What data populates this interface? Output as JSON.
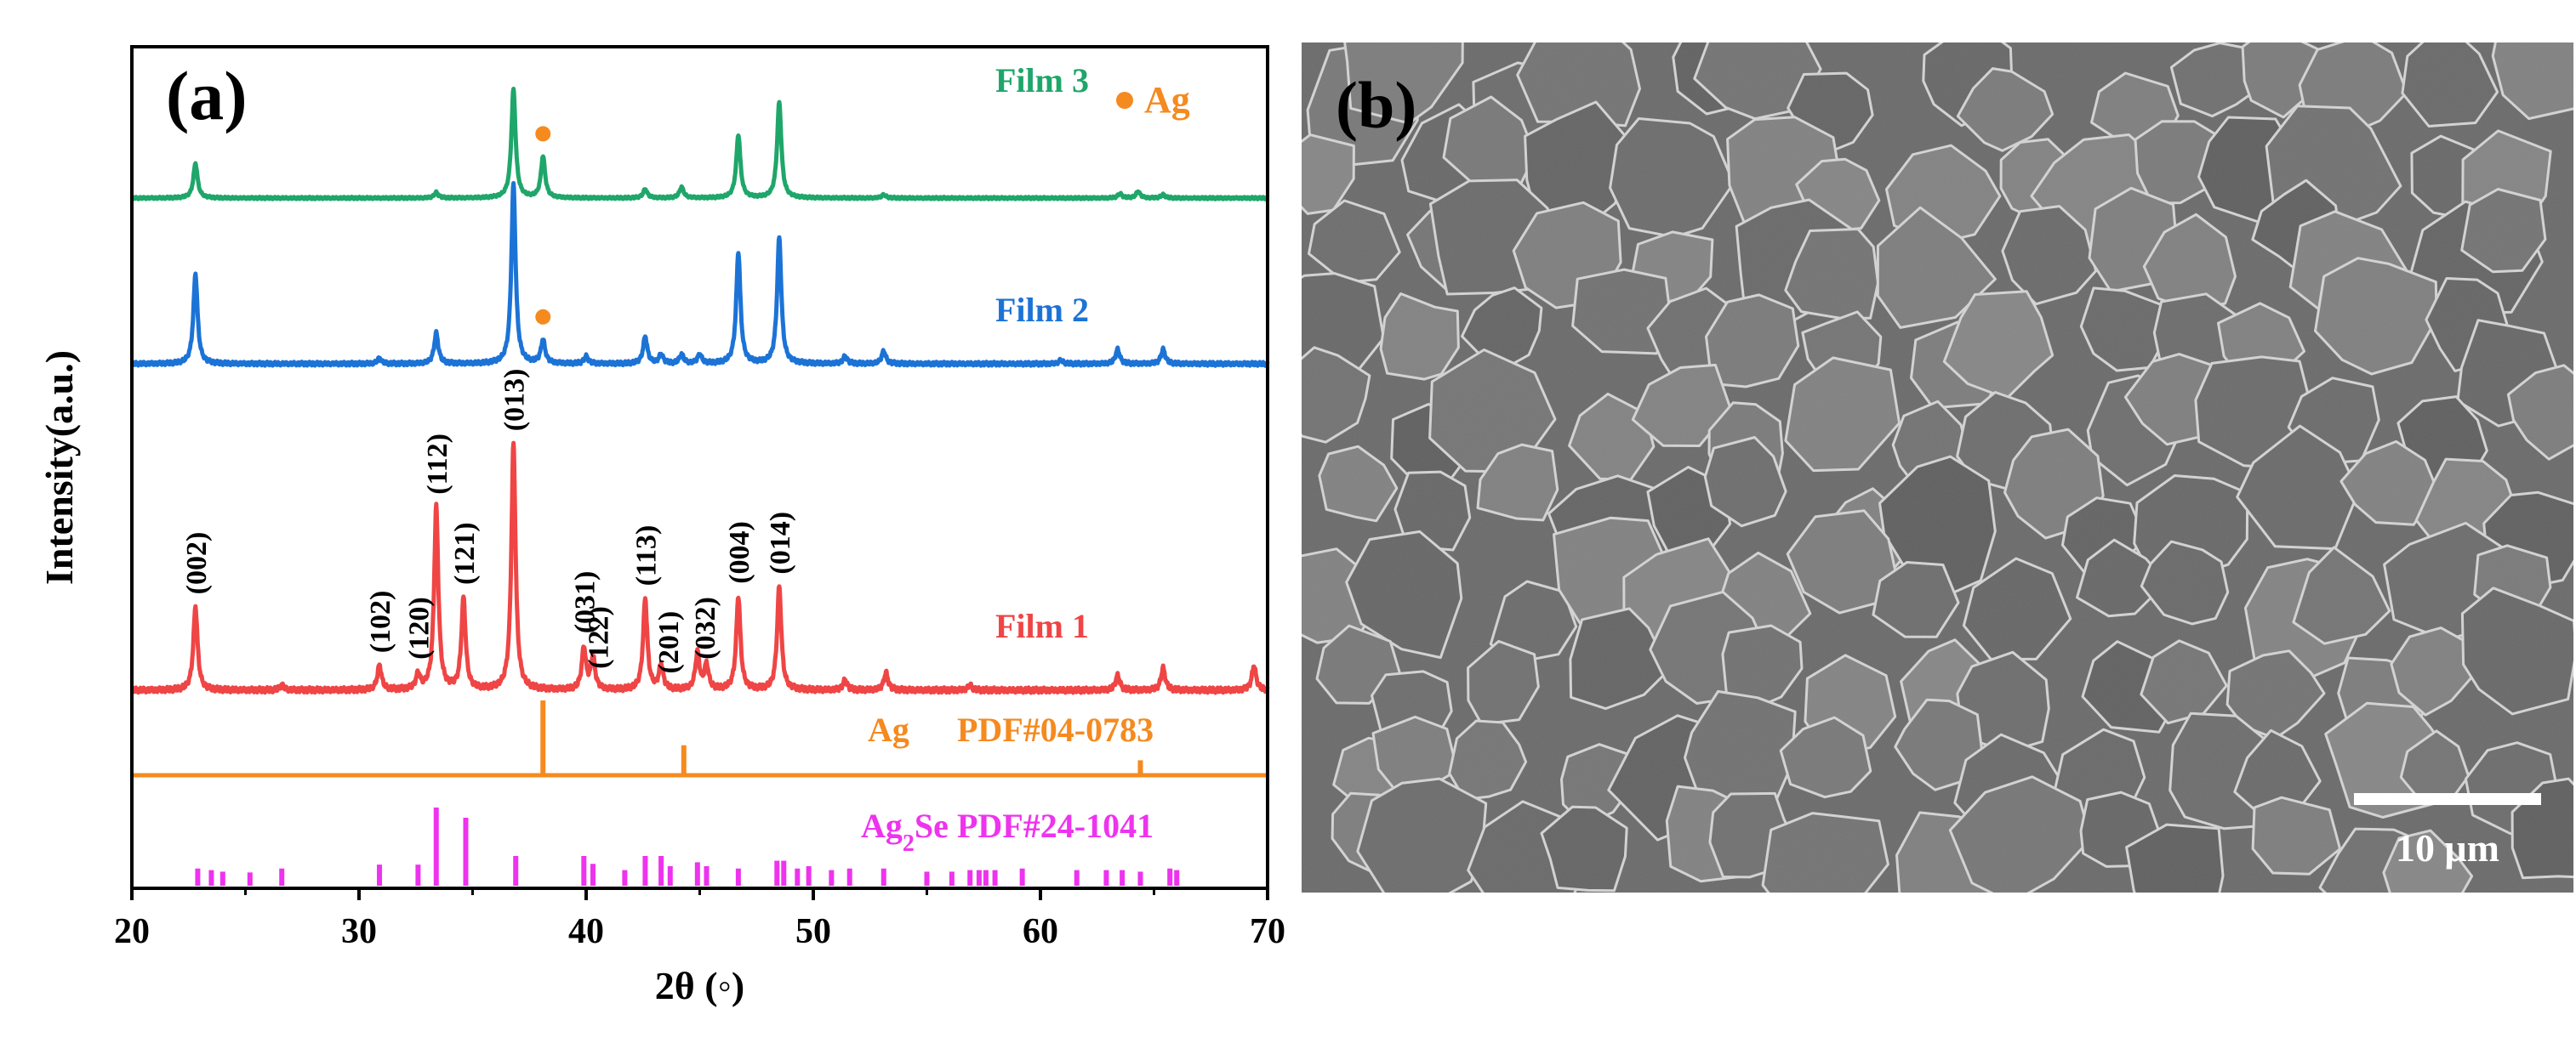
{
  "chart_data": {
    "type": "line",
    "panel_label": "(a)",
    "xlabel": "2θ (◦)",
    "ylabel": "Intensity(a.u.)",
    "xlim": [
      20,
      70
    ],
    "x_ticks": [
      20,
      30,
      40,
      50,
      60,
      70
    ],
    "legend_marker": {
      "label": "Ag",
      "color": "#f58a1f"
    },
    "series": [
      {
        "name": "Film 3",
        "color": "#1fa66a",
        "peaks": [
          {
            "x": 22.8,
            "h": 0.32
          },
          {
            "x": 33.4,
            "h": 0.05
          },
          {
            "x": 36.8,
            "h": 1.0
          },
          {
            "x": 38.1,
            "h": 0.38
          },
          {
            "x": 42.6,
            "h": 0.08
          },
          {
            "x": 44.2,
            "h": 0.1
          },
          {
            "x": 46.7,
            "h": 0.58
          },
          {
            "x": 48.5,
            "h": 0.88
          },
          {
            "x": 53.1,
            "h": 0.03
          },
          {
            "x": 63.5,
            "h": 0.04
          },
          {
            "x": 64.3,
            "h": 0.06
          },
          {
            "x": 65.4,
            "h": 0.03
          }
        ],
        "ag_markers": [
          38.1
        ]
      },
      {
        "name": "Film 2",
        "color": "#1c73d6",
        "peaks": [
          {
            "x": 22.8,
            "h": 0.5
          },
          {
            "x": 30.9,
            "h": 0.03
          },
          {
            "x": 33.4,
            "h": 0.17
          },
          {
            "x": 36.8,
            "h": 1.0
          },
          {
            "x": 38.1,
            "h": 0.13
          },
          {
            "x": 40.0,
            "h": 0.04
          },
          {
            "x": 42.6,
            "h": 0.15
          },
          {
            "x": 43.3,
            "h": 0.05
          },
          {
            "x": 44.2,
            "h": 0.05
          },
          {
            "x": 45.0,
            "h": 0.05
          },
          {
            "x": 46.7,
            "h": 0.62
          },
          {
            "x": 48.5,
            "h": 0.7
          },
          {
            "x": 51.4,
            "h": 0.04
          },
          {
            "x": 53.1,
            "h": 0.07
          },
          {
            "x": 60.9,
            "h": 0.02
          },
          {
            "x": 63.4,
            "h": 0.08
          },
          {
            "x": 65.4,
            "h": 0.08
          }
        ],
        "ag_markers": [
          38.1
        ]
      },
      {
        "name": "Film 1",
        "color": "#ef4545",
        "peaks": [
          {
            "x": 22.8,
            "h": 0.34
          },
          {
            "x": 26.6,
            "h": 0.02
          },
          {
            "x": 30.9,
            "h": 0.1
          },
          {
            "x": 32.6,
            "h": 0.06
          },
          {
            "x": 33.4,
            "h": 0.74
          },
          {
            "x": 34.6,
            "h": 0.37
          },
          {
            "x": 36.8,
            "h": 1.0
          },
          {
            "x": 39.9,
            "h": 0.17
          },
          {
            "x": 40.3,
            "h": 0.13
          },
          {
            "x": 42.6,
            "h": 0.37
          },
          {
            "x": 43.3,
            "h": 0.1
          },
          {
            "x": 44.9,
            "h": 0.15
          },
          {
            "x": 45.3,
            "h": 0.1
          },
          {
            "x": 46.7,
            "h": 0.38
          },
          {
            "x": 48.5,
            "h": 0.42
          },
          {
            "x": 51.4,
            "h": 0.04
          },
          {
            "x": 53.2,
            "h": 0.07
          },
          {
            "x": 56.9,
            "h": 0.02
          },
          {
            "x": 63.4,
            "h": 0.06
          },
          {
            "x": 65.4,
            "h": 0.09
          },
          {
            "x": 69.4,
            "h": 0.1
          }
        ],
        "hkl_labels": [
          {
            "x": 22.8,
            "label": "(002)"
          },
          {
            "x": 30.9,
            "label": "(102)"
          },
          {
            "x": 32.6,
            "label": "(120)"
          },
          {
            "x": 33.4,
            "label": "(112)"
          },
          {
            "x": 34.6,
            "label": "(121)"
          },
          {
            "x": 36.8,
            "label": "(013)"
          },
          {
            "x": 39.9,
            "label": "(031)"
          },
          {
            "x": 40.5,
            "label": "(122)"
          },
          {
            "x": 42.6,
            "label": "(113)"
          },
          {
            "x": 43.6,
            "label": "(201)"
          },
          {
            "x": 45.2,
            "label": "(032)"
          },
          {
            "x": 46.7,
            "label": "(004)"
          },
          {
            "x": 48.5,
            "label": "(014)"
          }
        ]
      }
    ],
    "references": [
      {
        "name": "Ag",
        "pdf": "PDF#04-0783",
        "color": "#f58a1f",
        "lines": [
          {
            "x": 38.1,
            "h": 1.0
          },
          {
            "x": 44.3,
            "h": 0.4
          },
          {
            "x": 64.4,
            "h": 0.2
          }
        ]
      },
      {
        "name": "Ag",
        "subscript": "2",
        "name_suffix": "Se",
        "pdf": "PDF#24-1041",
        "color": "#ee33ee",
        "lines": [
          {
            "x": 22.9,
            "h": 0.22
          },
          {
            "x": 23.5,
            "h": 0.2
          },
          {
            "x": 24.0,
            "h": 0.18
          },
          {
            "x": 25.2,
            "h": 0.17
          },
          {
            "x": 26.6,
            "h": 0.22
          },
          {
            "x": 30.9,
            "h": 0.27
          },
          {
            "x": 32.6,
            "h": 0.27
          },
          {
            "x": 33.4,
            "h": 1.0
          },
          {
            "x": 34.7,
            "h": 0.87
          },
          {
            "x": 36.9,
            "h": 0.38
          },
          {
            "x": 39.9,
            "h": 0.38
          },
          {
            "x": 40.3,
            "h": 0.28
          },
          {
            "x": 41.7,
            "h": 0.2
          },
          {
            "x": 42.6,
            "h": 0.38
          },
          {
            "x": 43.3,
            "h": 0.38
          },
          {
            "x": 43.7,
            "h": 0.25
          },
          {
            "x": 44.9,
            "h": 0.3
          },
          {
            "x": 45.3,
            "h": 0.25
          },
          {
            "x": 46.7,
            "h": 0.22
          },
          {
            "x": 48.4,
            "h": 0.32
          },
          {
            "x": 48.7,
            "h": 0.32
          },
          {
            "x": 49.3,
            "h": 0.22
          },
          {
            "x": 49.8,
            "h": 0.25
          },
          {
            "x": 50.8,
            "h": 0.2
          },
          {
            "x": 51.6,
            "h": 0.22
          },
          {
            "x": 53.1,
            "h": 0.22
          },
          {
            "x": 55.0,
            "h": 0.18
          },
          {
            "x": 56.1,
            "h": 0.18
          },
          {
            "x": 56.9,
            "h": 0.2
          },
          {
            "x": 57.3,
            "h": 0.2
          },
          {
            "x": 57.6,
            "h": 0.2
          },
          {
            "x": 58.0,
            "h": 0.2
          },
          {
            "x": 59.2,
            "h": 0.22
          },
          {
            "x": 61.6,
            "h": 0.2
          },
          {
            "x": 62.9,
            "h": 0.2
          },
          {
            "x": 63.6,
            "h": 0.2
          },
          {
            "x": 64.4,
            "h": 0.18
          },
          {
            "x": 65.7,
            "h": 0.22
          },
          {
            "x": 66.0,
            "h": 0.2
          }
        ]
      }
    ]
  },
  "sem_image": {
    "panel_label": "(b)",
    "scale_bar_label": "10 μm",
    "description_color": "#6e6e6e"
  }
}
